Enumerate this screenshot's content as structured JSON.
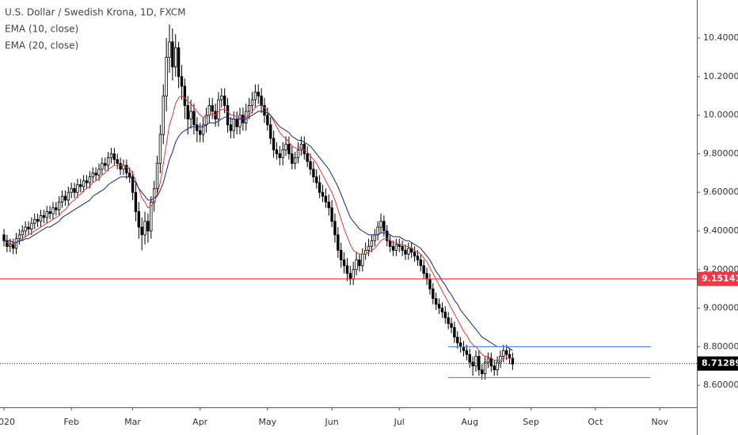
{
  "chart_data": {
    "type": "candlestick",
    "title": "U.S. Dollar / Swedish Krona, 1D, FXCM",
    "ohlc": {
      "open": [
        9.38,
        9.35,
        9.32,
        9.33,
        9.31,
        9.36,
        9.38,
        9.4,
        9.42,
        9.41,
        9.44,
        9.46,
        9.45,
        9.48,
        9.47,
        9.5,
        9.49,
        9.52,
        9.51,
        9.55,
        9.58,
        9.56,
        9.6,
        9.62,
        9.6,
        9.64,
        9.63,
        9.66,
        9.65,
        9.68,
        9.7,
        9.69,
        9.72,
        9.75,
        9.74,
        9.78,
        9.8,
        9.77,
        9.75,
        9.72,
        9.74,
        9.7,
        9.68,
        9.6,
        9.5,
        9.42,
        9.38,
        9.45,
        9.4,
        9.55,
        9.62,
        9.75,
        9.9,
        10.1,
        10.3,
        10.38,
        10.25,
        10.35,
        10.2,
        10.15,
        10.05,
        9.98,
        10.02,
        9.95,
        9.92,
        9.9,
        9.95,
        10.0,
        10.05,
        10.02,
        9.98,
        10.08,
        10.1,
        10.05,
        9.95,
        9.92,
        9.98,
        9.94,
        10.0,
        9.96,
        10.02,
        10.05,
        10.08,
        10.12,
        10.1,
        10.05,
        10.0,
        9.95,
        9.88,
        9.82,
        9.8,
        9.78,
        9.82,
        9.85,
        9.8,
        9.75,
        9.78,
        9.82,
        9.85,
        9.8,
        9.76,
        9.72,
        9.68,
        9.65,
        9.6,
        9.58,
        9.55,
        9.52,
        9.45,
        9.38,
        9.3,
        9.25,
        9.22,
        9.18,
        9.15,
        9.2,
        9.25,
        9.22,
        9.28,
        9.3,
        9.32,
        9.35,
        9.38,
        9.42,
        9.45,
        9.4,
        9.35,
        9.32,
        9.3,
        9.33,
        9.32,
        9.3,
        9.28,
        9.31,
        9.29,
        9.27,
        9.25,
        9.22,
        9.18,
        9.15,
        9.1,
        9.05,
        9.02,
        9.0,
        8.98,
        8.95,
        8.92,
        8.9,
        8.85,
        8.82,
        8.8,
        8.78,
        8.76,
        8.72,
        8.7,
        8.75,
        8.68,
        8.66,
        8.72,
        8.74,
        8.7,
        8.68,
        8.72,
        8.75,
        8.78,
        8.76,
        8.74
      ],
      "high": [
        9.41,
        9.38,
        9.36,
        9.36,
        9.39,
        9.41,
        9.43,
        9.45,
        9.45,
        9.47,
        9.49,
        9.49,
        9.51,
        9.51,
        9.53,
        9.53,
        9.55,
        9.55,
        9.58,
        9.61,
        9.61,
        9.63,
        9.65,
        9.65,
        9.67,
        9.67,
        9.69,
        9.69,
        9.71,
        9.73,
        9.73,
        9.75,
        9.78,
        9.78,
        9.81,
        9.83,
        9.83,
        9.8,
        9.78,
        9.77,
        9.77,
        9.73,
        9.71,
        9.66,
        9.55,
        9.47,
        9.5,
        9.49,
        9.58,
        9.66,
        9.79,
        9.95,
        10.16,
        10.4,
        10.47,
        10.45,
        10.42,
        10.38,
        10.26,
        10.19,
        10.1,
        10.08,
        10.06,
        9.99,
        9.96,
        9.99,
        10.04,
        10.09,
        10.09,
        10.06,
        10.12,
        10.14,
        10.14,
        10.09,
        9.99,
        10.02,
        10.02,
        10.04,
        10.04,
        10.06,
        10.09,
        10.12,
        10.16,
        10.16,
        10.14,
        10.09,
        10.04,
        9.99,
        9.92,
        9.86,
        9.84,
        9.86,
        9.89,
        9.89,
        9.84,
        9.81,
        9.86,
        9.89,
        9.89,
        9.84,
        9.8,
        9.76,
        9.72,
        9.69,
        9.64,
        9.62,
        9.59,
        9.56,
        9.49,
        9.42,
        9.34,
        9.29,
        9.26,
        9.22,
        9.24,
        9.29,
        9.28,
        9.31,
        9.34,
        9.36,
        9.38,
        9.41,
        9.45,
        9.49,
        9.48,
        9.43,
        9.38,
        9.35,
        9.36,
        9.36,
        9.35,
        9.33,
        9.34,
        9.34,
        9.32,
        9.3,
        9.28,
        9.25,
        9.21,
        9.18,
        9.13,
        9.08,
        9.05,
        9.03,
        9.01,
        8.98,
        8.95,
        8.93,
        8.88,
        8.85,
        8.83,
        8.81,
        8.79,
        8.75,
        8.78,
        8.78,
        8.71,
        8.75,
        8.77,
        8.77,
        8.73,
        8.75,
        8.78,
        8.81,
        8.81,
        8.79,
        8.77
      ],
      "low": [
        9.32,
        9.29,
        9.29,
        9.28,
        9.28,
        9.33,
        9.35,
        9.37,
        9.38,
        9.38,
        9.41,
        9.42,
        9.42,
        9.44,
        9.44,
        9.46,
        9.46,
        9.48,
        9.48,
        9.52,
        9.53,
        9.53,
        9.57,
        9.57,
        9.57,
        9.6,
        9.6,
        9.62,
        9.62,
        9.65,
        9.66,
        9.66,
        9.69,
        9.71,
        9.71,
        9.75,
        9.74,
        9.72,
        9.69,
        9.69,
        9.67,
        9.65,
        9.56,
        9.45,
        9.36,
        9.3,
        9.33,
        9.34,
        9.36,
        9.5,
        9.58,
        9.7,
        9.85,
        10.02,
        10.22,
        10.18,
        10.2,
        10.14,
        10.08,
        9.98,
        9.9,
        9.93,
        9.9,
        9.86,
        9.86,
        9.86,
        9.91,
        9.96,
        9.98,
        9.94,
        9.94,
        10.04,
        10.01,
        9.91,
        9.88,
        9.88,
        9.9,
        9.9,
        9.92,
        9.92,
        9.98,
        10.01,
        10.04,
        10.06,
        10.01,
        9.96,
        9.92,
        9.85,
        9.78,
        9.77,
        9.74,
        9.74,
        9.79,
        9.77,
        9.72,
        9.72,
        9.75,
        9.79,
        9.77,
        9.73,
        9.69,
        9.65,
        9.62,
        9.57,
        9.55,
        9.52,
        9.48,
        9.42,
        9.34,
        9.26,
        9.21,
        9.18,
        9.14,
        9.12,
        9.12,
        9.17,
        9.19,
        9.19,
        9.25,
        9.27,
        9.29,
        9.32,
        9.35,
        9.39,
        9.37,
        9.32,
        9.29,
        9.27,
        9.27,
        9.29,
        9.27,
        9.25,
        9.25,
        9.26,
        9.24,
        9.22,
        9.19,
        9.15,
        9.12,
        9.07,
        9.02,
        8.99,
        8.97,
        8.95,
        8.92,
        8.89,
        8.87,
        8.82,
        8.79,
        8.77,
        8.75,
        8.73,
        8.69,
        8.65,
        8.67,
        8.65,
        8.63,
        8.63,
        8.69,
        8.67,
        8.65,
        8.65,
        8.69,
        8.72,
        8.73,
        8.71,
        8.68
      ],
      "close": [
        9.35,
        9.32,
        9.33,
        9.31,
        9.36,
        9.38,
        9.4,
        9.42,
        9.41,
        9.44,
        9.46,
        9.45,
        9.48,
        9.47,
        9.5,
        9.49,
        9.52,
        9.51,
        9.55,
        9.58,
        9.56,
        9.6,
        9.62,
        9.6,
        9.64,
        9.63,
        9.66,
        9.65,
        9.68,
        9.7,
        9.69,
        9.72,
        9.75,
        9.74,
        9.78,
        9.8,
        9.77,
        9.75,
        9.72,
        9.74,
        9.7,
        9.68,
        9.6,
        9.5,
        9.42,
        9.38,
        9.45,
        9.4,
        9.55,
        9.62,
        9.75,
        9.9,
        10.1,
        10.3,
        10.38,
        10.25,
        10.35,
        10.2,
        10.15,
        10.05,
        9.98,
        10.02,
        9.95,
        9.92,
        9.9,
        9.95,
        10.0,
        10.05,
        10.02,
        9.98,
        10.08,
        10.1,
        10.05,
        9.95,
        9.92,
        9.98,
        9.94,
        10.0,
        9.96,
        10.02,
        10.05,
        10.08,
        10.12,
        10.1,
        10.05,
        10.0,
        9.95,
        9.88,
        9.82,
        9.8,
        9.78,
        9.82,
        9.85,
        9.8,
        9.75,
        9.78,
        9.82,
        9.85,
        9.8,
        9.76,
        9.72,
        9.68,
        9.65,
        9.6,
        9.58,
        9.55,
        9.52,
        9.45,
        9.38,
        9.3,
        9.25,
        9.22,
        9.18,
        9.15,
        9.2,
        9.25,
        9.22,
        9.28,
        9.3,
        9.32,
        9.35,
        9.38,
        9.42,
        9.45,
        9.4,
        9.35,
        9.32,
        9.3,
        9.33,
        9.32,
        9.3,
        9.28,
        9.31,
        9.29,
        9.27,
        9.25,
        9.22,
        9.18,
        9.15,
        9.1,
        9.05,
        9.02,
        9.0,
        8.98,
        8.95,
        8.92,
        8.9,
        8.85,
        8.82,
        8.8,
        8.78,
        8.76,
        8.72,
        8.7,
        8.75,
        8.68,
        8.66,
        8.72,
        8.74,
        8.7,
        8.68,
        8.72,
        8.75,
        8.78,
        8.76,
        8.74,
        8.71
      ]
    },
    "series": [
      {
        "name": "EMA (10, close)",
        "color": "#e53935",
        "values": [
          9.35,
          9.34,
          9.34,
          9.33,
          9.34,
          9.35,
          9.36,
          9.37,
          9.38,
          9.39,
          9.4,
          9.41,
          9.42,
          9.43,
          9.44,
          9.45,
          9.46,
          9.47,
          9.48,
          9.5,
          9.51,
          9.53,
          9.55,
          9.56,
          9.58,
          9.59,
          9.61,
          9.62,
          9.63,
          9.65,
          9.66,
          9.67,
          9.69,
          9.7,
          9.72,
          9.73,
          9.74,
          9.74,
          9.74,
          9.74,
          9.73,
          9.72,
          9.7,
          9.66,
          9.62,
          9.57,
          9.55,
          9.52,
          9.53,
          9.55,
          9.59,
          9.65,
          9.75,
          9.85,
          9.95,
          10.0,
          10.06,
          10.09,
          10.1,
          10.09,
          10.07,
          10.06,
          10.04,
          10.02,
          10.0,
          9.99,
          9.99,
          10.0,
          10.01,
          10.0,
          10.02,
          10.03,
          10.03,
          10.02,
          10.0,
          10.0,
          9.99,
          9.99,
          9.98,
          9.99,
          10.0,
          10.02,
          10.04,
          10.05,
          10.05,
          10.04,
          10.02,
          10.0,
          9.97,
          9.94,
          9.91,
          9.89,
          9.88,
          9.86,
          9.84,
          9.83,
          9.83,
          9.83,
          9.82,
          9.81,
          9.79,
          9.77,
          9.75,
          9.72,
          9.69,
          9.66,
          9.63,
          9.6,
          9.56,
          9.51,
          9.46,
          9.41,
          9.37,
          9.33,
          9.3,
          9.29,
          9.28,
          9.28,
          9.28,
          9.29,
          9.3,
          9.31,
          9.33,
          9.35,
          9.36,
          9.36,
          9.35,
          9.34,
          9.34,
          9.33,
          9.33,
          9.32,
          9.32,
          9.31,
          9.3,
          9.29,
          9.28,
          9.26,
          9.24,
          9.21,
          9.18,
          9.15,
          9.12,
          9.09,
          9.06,
          9.03,
          9.0,
          8.97,
          8.94,
          8.91,
          8.88,
          8.86,
          8.83,
          8.81,
          8.8,
          8.78,
          8.76,
          8.75,
          8.75,
          8.74,
          8.73,
          8.73,
          8.73,
          8.74,
          8.74,
          8.74,
          8.74
        ]
      },
      {
        "name": "EMA (20, close)",
        "color": "#1a237e",
        "values": [
          9.35,
          9.35,
          9.35,
          9.34,
          9.34,
          9.35,
          9.35,
          9.36,
          9.36,
          9.37,
          9.38,
          9.39,
          9.4,
          9.41,
          9.42,
          9.42,
          9.43,
          9.44,
          9.45,
          9.47,
          9.48,
          9.49,
          9.5,
          9.51,
          9.52,
          9.53,
          9.54,
          9.55,
          9.56,
          9.58,
          9.59,
          9.6,
          9.61,
          9.62,
          9.64,
          9.65,
          9.66,
          9.67,
          9.68,
          9.68,
          9.68,
          9.68,
          9.67,
          9.65,
          9.62,
          9.6,
          9.58,
          9.56,
          9.56,
          9.57,
          9.58,
          9.61,
          9.65,
          9.71,
          9.77,
          9.81,
          9.86,
          9.89,
          9.91,
          9.92,
          9.93,
          9.94,
          9.94,
          9.94,
          9.94,
          9.94,
          9.95,
          9.96,
          9.96,
          9.96,
          9.97,
          9.98,
          9.99,
          9.99,
          9.98,
          9.98,
          9.98,
          9.98,
          9.98,
          9.98,
          9.99,
          10.0,
          10.01,
          10.02,
          10.02,
          10.02,
          10.01,
          10.0,
          9.98,
          9.96,
          9.94,
          9.93,
          9.92,
          9.91,
          9.89,
          9.88,
          9.87,
          9.87,
          9.86,
          9.85,
          9.84,
          9.82,
          9.8,
          9.78,
          9.76,
          9.74,
          9.72,
          9.69,
          9.66,
          9.63,
          9.59,
          9.55,
          9.51,
          9.47,
          9.45,
          9.43,
          9.41,
          9.4,
          9.39,
          9.38,
          9.38,
          9.38,
          9.38,
          9.39,
          9.39,
          9.39,
          9.38,
          9.37,
          9.37,
          9.37,
          9.36,
          9.35,
          9.35,
          9.34,
          9.33,
          9.32,
          9.31,
          9.29,
          9.27,
          9.25,
          9.22,
          9.19,
          9.17,
          9.14,
          9.12,
          9.09,
          9.07,
          9.04,
          9.02,
          8.99,
          8.97,
          8.95,
          8.93,
          8.91,
          8.89,
          8.87,
          8.85,
          8.84,
          8.83,
          8.82,
          8.81,
          8.8,
          8.8,
          8.8,
          8.8,
          8.79,
          8.78
        ]
      }
    ],
    "up_color": "#ffffff",
    "down_color": "#000000",
    "levels": [
      {
        "value": 9.15141,
        "color": "#f23645"
      }
    ],
    "ranges": [
      {
        "value": 8.8,
        "x": [
          145,
          211
        ],
        "color": "#4a90e2"
      },
      {
        "value": 8.64,
        "x": [
          145,
          211
        ],
        "color": "#4a90e2"
      }
    ],
    "last_price": 8.71289,
    "xlim": [
      -1.3,
      226.1
    ],
    "xticks": [
      {
        "value": 0,
        "label": "2020"
      },
      {
        "value": 22,
        "label": "Feb"
      },
      {
        "value": 42,
        "label": "Mar"
      },
      {
        "value": 64,
        "label": "Apr"
      },
      {
        "value": 86,
        "label": "May"
      },
      {
        "value": 107,
        "label": "Jun"
      },
      {
        "value": 129,
        "label": "Jul"
      },
      {
        "value": 152,
        "label": "Aug"
      },
      {
        "value": 172,
        "label": "Sep"
      },
      {
        "value": 193,
        "label": "Oct"
      },
      {
        "value": 214,
        "label": "Nov"
      }
    ],
    "ylim": [
      8.486,
      10.597
    ],
    "yticks": [
      {
        "value": 8.6,
        "label": "8.60000"
      },
      {
        "value": 8.8,
        "label": "8.80000"
      },
      {
        "value": 9.0,
        "label": "9.00000"
      },
      {
        "value": 9.2,
        "label": "9.20000"
      },
      {
        "value": 9.4,
        "label": "9.40000"
      },
      {
        "value": 9.6,
        "label": "9.60000"
      },
      {
        "value": 9.8,
        "label": "9.80000"
      },
      {
        "value": 10.0,
        "label": "10.00000"
      },
      {
        "value": 10.2,
        "label": "10.20000"
      },
      {
        "value": 10.4,
        "label": "10.40000"
      }
    ]
  }
}
